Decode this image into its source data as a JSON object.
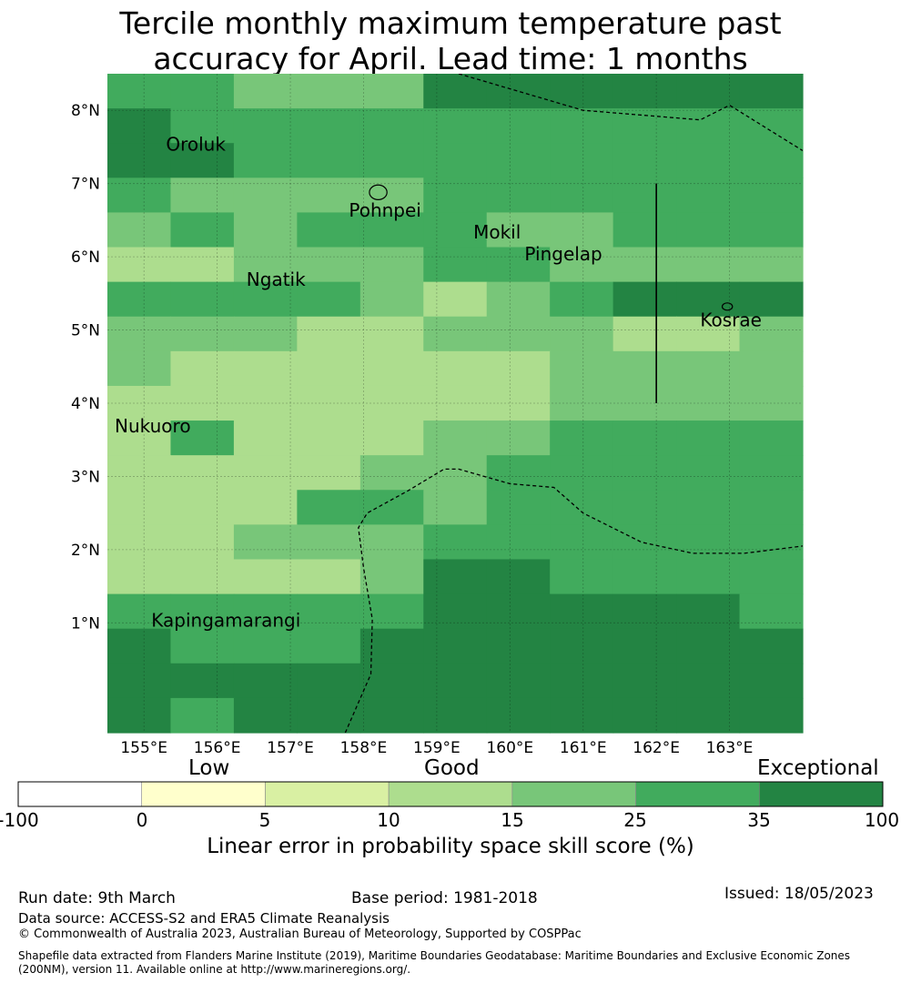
{
  "title": {
    "line1": "Tercile monthly maximum temperature past",
    "line2": "accuracy for April. Lead time: 1 months"
  },
  "map": {
    "lon_range": [
      154.5,
      164.0
    ],
    "lat_range": [
      -0.5,
      8.5
    ],
    "cell_size_deg": 0.8333,
    "lon_ticks": [
      "155°E",
      "156°E",
      "157°E",
      "158°E",
      "159°E",
      "160°E",
      "161°E",
      "162°E",
      "163°E"
    ],
    "lat_ticks": [
      "1°N",
      "2°N",
      "3°N",
      "4°N",
      "5°N",
      "6°N",
      "7°N",
      "8°N"
    ],
    "skill_category_grid_top_to_bottom": [
      "55444666666",
      "65555555555",
      "66555555555",
      "54444555555",
      "45455544555",
      "33444554444",
      "55554345666",
      "44433444334",
      "43333334444",
      "33333334444",
      "35333445555",
      "33334455555",
      "33355455555",
      "33444555555",
      "33334665555",
      "55555666665",
      "65556666666",
      "66666666666",
      "65666666666"
    ],
    "place_labels": [
      {
        "name": "Oroluk",
        "lon": 155.3,
        "lat": 7.55
      },
      {
        "name": "Pohnpei",
        "lon": 157.8,
        "lat": 6.65
      },
      {
        "name": "Mokil",
        "lon": 159.5,
        "lat": 6.35
      },
      {
        "name": "Pingelap",
        "lon": 160.2,
        "lat": 6.05
      },
      {
        "name": "Ngatik",
        "lon": 156.4,
        "lat": 5.7
      },
      {
        "name": "Kosrae",
        "lon": 162.6,
        "lat": 5.15
      },
      {
        "name": "Nukuoro",
        "lon": 154.6,
        "lat": 3.7
      },
      {
        "name": "Kapingamarangi",
        "lon": 155.1,
        "lat": 1.05
      }
    ],
    "boundary_lines": [
      [
        [
          159.3,
          8.5
        ],
        [
          161.0,
          8.0
        ],
        [
          162.6,
          7.87
        ],
        [
          163.0,
          8.07
        ],
        [
          164.0,
          7.45
        ]
      ],
      [
        [
          154.5,
          -0.5
        ]
      ],
      [
        [
          157.75,
          -0.5
        ],
        [
          158.1,
          0.3
        ],
        [
          158.12,
          1.05
        ],
        [
          158.0,
          1.75
        ],
        [
          157.93,
          2.3
        ],
        [
          158.05,
          2.5
        ],
        [
          158.6,
          2.8
        ],
        [
          159.1,
          3.1
        ],
        [
          159.3,
          3.1
        ],
        [
          160.0,
          2.9
        ],
        [
          160.6,
          2.85
        ],
        [
          161.0,
          2.5
        ],
        [
          161.8,
          2.1
        ],
        [
          162.5,
          1.95
        ],
        [
          163.2,
          1.95
        ],
        [
          164.0,
          2.05
        ]
      ]
    ],
    "vertical_line": {
      "lon": 162.0,
      "lat_top": 7.0,
      "lat_bottom": 4.0
    },
    "islands": [
      {
        "lon": 158.2,
        "lat": 6.88,
        "rx_deg": 0.12,
        "ry_deg": 0.1
      },
      {
        "lon": 162.97,
        "lat": 5.32,
        "rx_deg": 0.07,
        "ry_deg": 0.05
      }
    ]
  },
  "colorbar": {
    "headers": [
      "Low",
      "Good",
      "Exceptional"
    ],
    "tick_labels": [
      "-100",
      "0",
      "5",
      "10",
      "15",
      "25",
      "35",
      "100"
    ],
    "segment_colors": [
      "#ffffff",
      "#ffffcc",
      "#d9f0a3",
      "#addd8e",
      "#78c679",
      "#41ab5d",
      "#238443"
    ],
    "label": "Linear error in probability space skill score (%)"
  },
  "footer": {
    "run_date": "Run date: 9th March",
    "base_period": "Base period: 1981-2018",
    "issued": "Issued: 18/05/2023",
    "data_source": "Data source: ACCESS-S2 and ERA5 Climate Reanalysis",
    "copyright": "© Commonwealth of Australia 2023, Australian Bureau of Meteorology, Supported by COSPPac",
    "shapefile_line1": "Shapefile data extracted from Flanders Marine Institute (2019), Maritime Boundaries Geodatabase: Maritime Boundaries and Exclusive Economic Zones",
    "shapefile_line2": "(200NM), version 11. Available online at http://www.marineregions.org/."
  }
}
